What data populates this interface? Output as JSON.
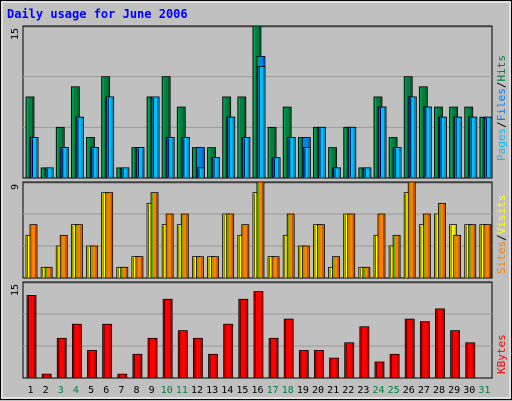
{
  "title": "Daily usage for June 2006",
  "colors": {
    "background": "#c0c0c0",
    "title": "#0000ff",
    "hits": "#008040",
    "files": "#0080ff",
    "pages": "#00c0ff",
    "visits": "#ffff00",
    "sites": "#ff8000",
    "kbytes": "#ff0000",
    "weekday_label": "#000000",
    "weekend_label": "#008040"
  },
  "chart_data": [
    {
      "type": "bar",
      "panel": "top",
      "y_max_label": "15",
      "ylim": [
        0,
        15
      ],
      "categories": [
        "1",
        "2",
        "3",
        "4",
        "5",
        "6",
        "7",
        "8",
        "9",
        "10",
        "11",
        "12",
        "13",
        "14",
        "15",
        "16",
        "17",
        "18",
        "19",
        "20",
        "21",
        "22",
        "23",
        "24",
        "25",
        "26",
        "27",
        "28",
        "29",
        "30",
        "31"
      ],
      "legend": [
        {
          "text": "Pages",
          "color": "#00c0ff"
        },
        {
          "text": "/",
          "color": "#000000"
        },
        {
          "text": "Files",
          "color": "#0080ff"
        },
        {
          "text": "/",
          "color": "#000000"
        },
        {
          "text": "Hits",
          "color": "#008040"
        }
      ],
      "series": [
        {
          "name": "Hits",
          "values": [
            8,
            1,
            5,
            9,
            4,
            10,
            1,
            3,
            8,
            10,
            7,
            3,
            3,
            8,
            8,
            15,
            5,
            7,
            4,
            5,
            3,
            5,
            1,
            8,
            4,
            10,
            9,
            7,
            7,
            7,
            6
          ]
        },
        {
          "name": "Files",
          "values": [
            4,
            1,
            3,
            6,
            3,
            8,
            1,
            3,
            8,
            4,
            4,
            3,
            2,
            6,
            4,
            12,
            2,
            4,
            4,
            5,
            1,
            5,
            1,
            7,
            3,
            8,
            7,
            6,
            6,
            6,
            6
          ]
        },
        {
          "name": "Pages",
          "values": [
            4,
            1,
            3,
            6,
            3,
            8,
            1,
            3,
            8,
            4,
            4,
            1,
            2,
            6,
            4,
            11,
            2,
            4,
            3,
            5,
            1,
            5,
            1,
            7,
            3,
            8,
            7,
            6,
            6,
            6,
            6
          ]
        }
      ]
    },
    {
      "type": "bar",
      "panel": "middle",
      "y_max_label": "9",
      "ylim": [
        0,
        9
      ],
      "categories": [
        "1",
        "2",
        "3",
        "4",
        "5",
        "6",
        "7",
        "8",
        "9",
        "10",
        "11",
        "12",
        "13",
        "14",
        "15",
        "16",
        "17",
        "18",
        "19",
        "20",
        "21",
        "22",
        "23",
        "24",
        "25",
        "26",
        "27",
        "28",
        "29",
        "30",
        "31"
      ],
      "legend": [
        {
          "text": "Sites",
          "color": "#ff8000"
        },
        {
          "text": "/",
          "color": "#000000"
        },
        {
          "text": "Visits",
          "color": "#ffff00"
        }
      ],
      "series": [
        {
          "name": "Visits",
          "values": [
            4,
            1,
            3,
            5,
            3,
            8,
            1,
            2,
            7,
            5,
            5,
            2,
            2,
            6,
            4,
            8,
            2,
            4,
            3,
            5,
            1,
            6,
            1,
            4,
            3,
            8,
            5,
            6,
            5,
            5,
            5
          ]
        },
        {
          "name": "Sites",
          "values": [
            5,
            1,
            4,
            5,
            3,
            8,
            1,
            2,
            8,
            6,
            6,
            2,
            2,
            6,
            5,
            9,
            2,
            6,
            3,
            5,
            2,
            6,
            1,
            6,
            4,
            9,
            6,
            7,
            4,
            5,
            5
          ]
        }
      ]
    },
    {
      "type": "bar",
      "panel": "bottom",
      "y_max_label": "15",
      "ylim": [
        0,
        15
      ],
      "categories": [
        "1",
        "2",
        "3",
        "4",
        "5",
        "6",
        "7",
        "8",
        "9",
        "10",
        "11",
        "12",
        "13",
        "14",
        "15",
        "16",
        "17",
        "18",
        "19",
        "20",
        "21",
        "22",
        "23",
        "24",
        "25",
        "26",
        "27",
        "28",
        "29",
        "30",
        "31"
      ],
      "legend": [
        {
          "text": "KBytes",
          "color": "#ff0000"
        }
      ],
      "series": [
        {
          "name": "KBytes",
          "values": [
            12.9,
            0.6,
            6.2,
            8.4,
            4.3,
            8.4,
            0.6,
            3.7,
            6.2,
            12.3,
            7.4,
            6.2,
            3.7,
            8.4,
            12.3,
            13.5,
            6.2,
            9.2,
            4.3,
            4.3,
            3.1,
            5.5,
            8.0,
            2.5,
            3.7,
            9.2,
            8.8,
            10.8,
            7.4,
            5.5,
            0
          ]
        }
      ]
    }
  ],
  "weekend_days": [
    "3",
    "4",
    "10",
    "11",
    "17",
    "18",
    "24",
    "25",
    "31"
  ]
}
